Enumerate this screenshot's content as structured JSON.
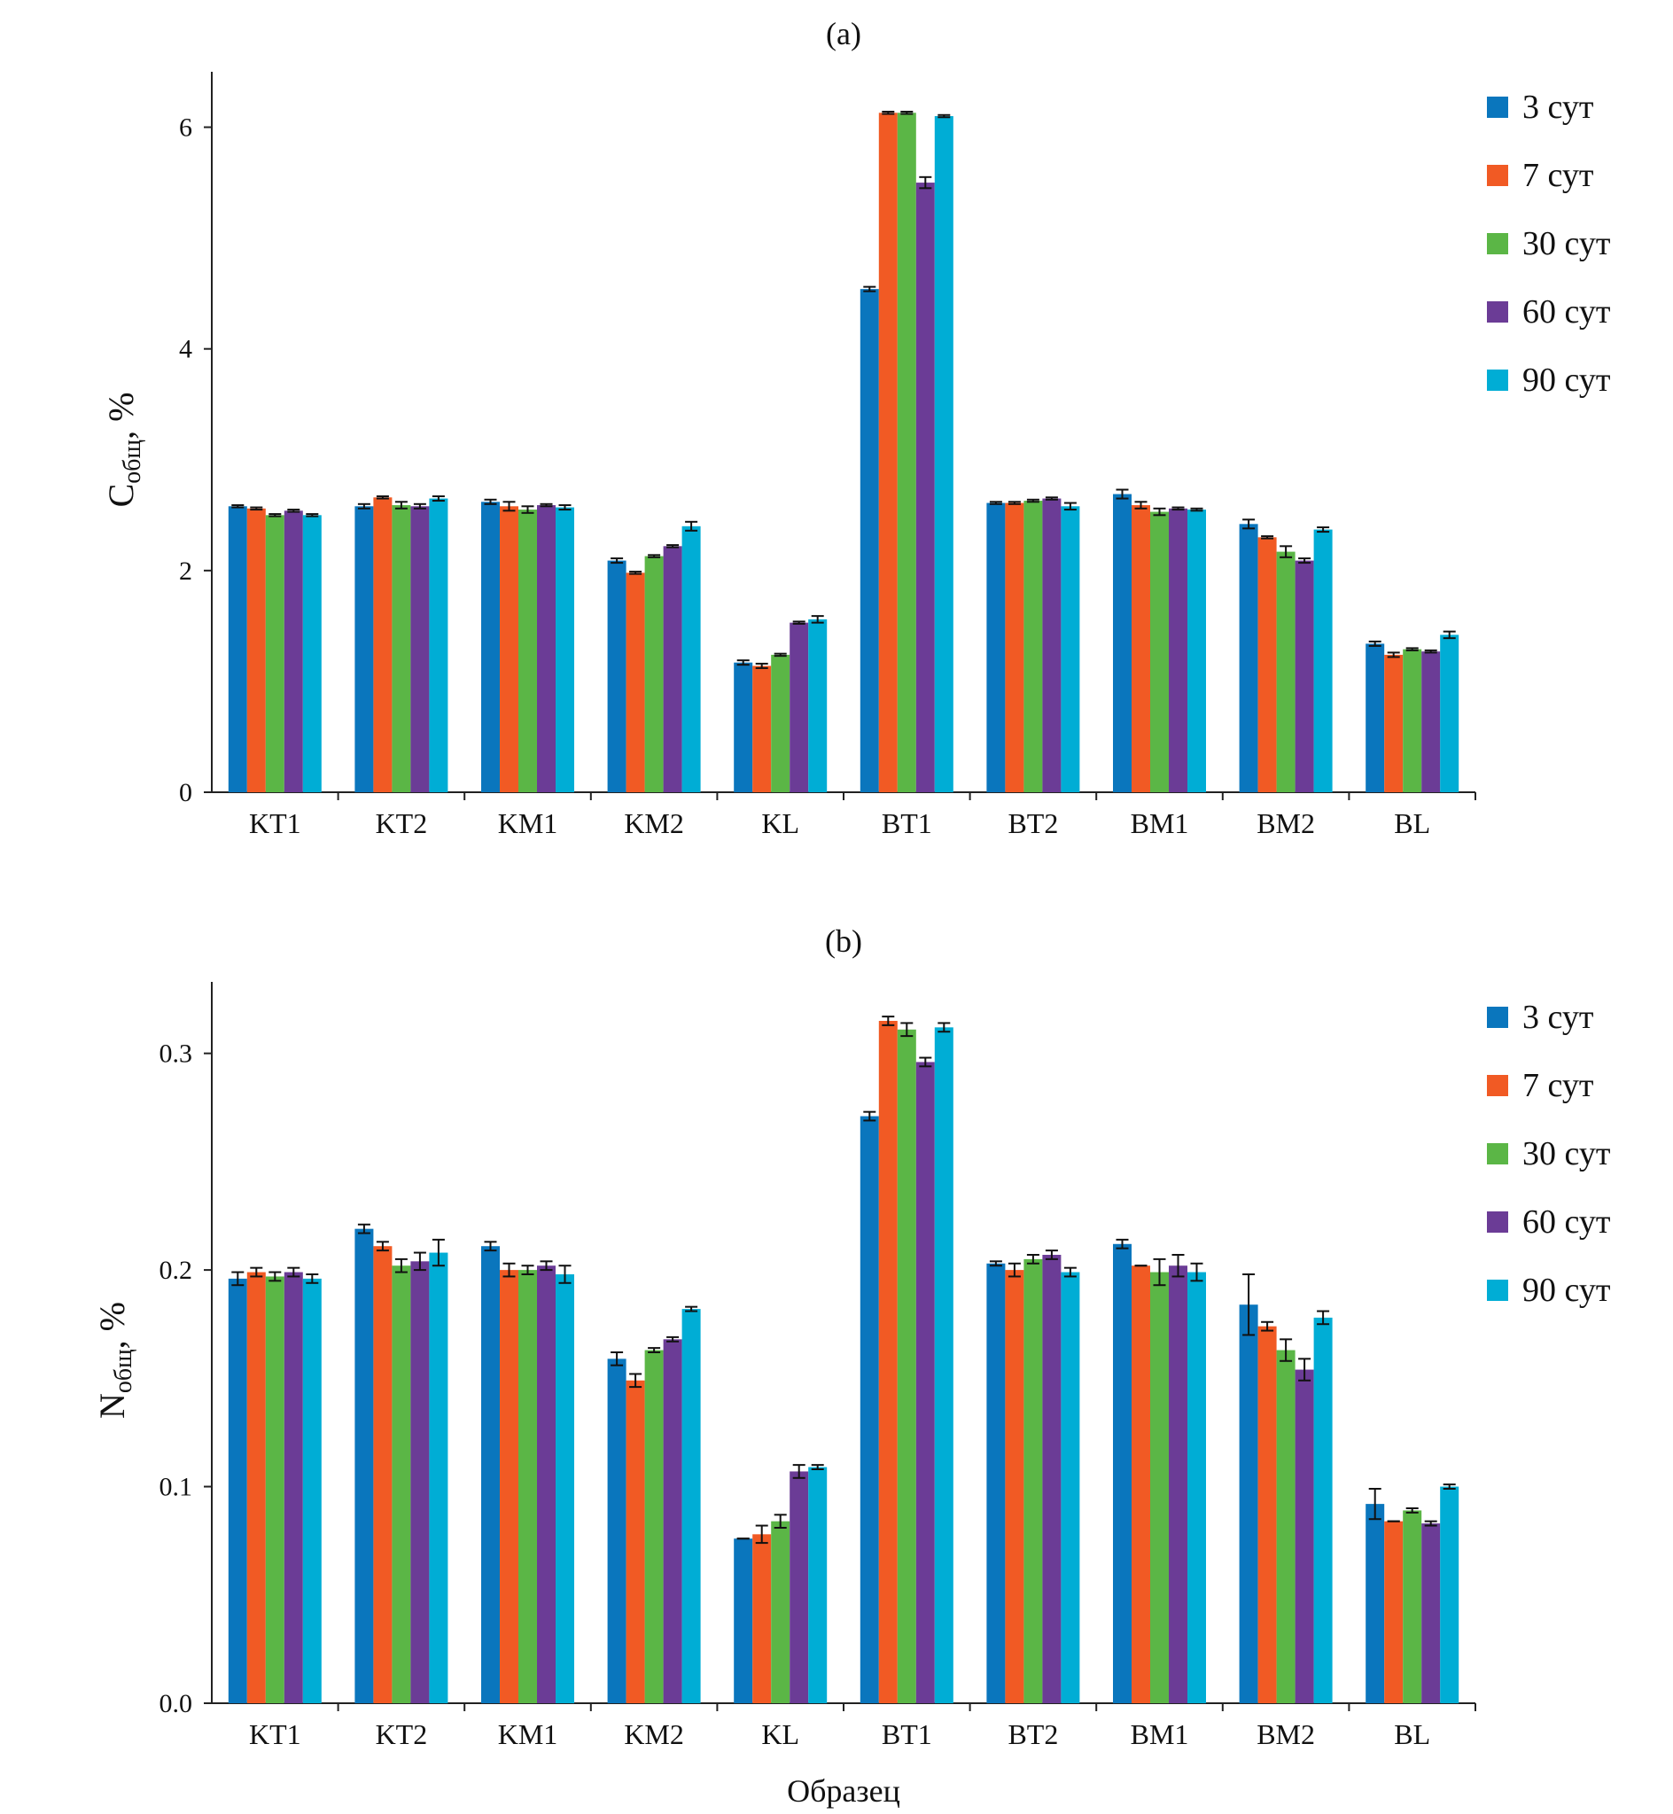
{
  "colors": [
    "#0a76bd",
    "#f15a24",
    "#5bb646",
    "#6b3c96",
    "#00add5"
  ],
  "xlabel": "Образец",
  "chart_data": [
    {
      "type": "bar",
      "title": "(a)",
      "ylabel_main": "C",
      "ylabel_sub": "общ",
      "ylabel_tail": ", %",
      "ylim": [
        0,
        6.5
      ],
      "yticks": [
        0,
        2,
        4,
        6
      ],
      "ytick_labels": [
        "0",
        "2",
        "4",
        "6"
      ],
      "categories": [
        "KT1",
        "KT2",
        "KM1",
        "KM2",
        "KL",
        "BT1",
        "BT2",
        "BM1",
        "BM2",
        "BL"
      ],
      "series": [
        {
          "name": "3 сут",
          "values": [
            2.58,
            2.58,
            2.62,
            2.09,
            1.17,
            4.54,
            2.61,
            2.69,
            2.42,
            1.34
          ],
          "errors": [
            0.01,
            0.02,
            0.02,
            0.02,
            0.02,
            0.02,
            0.01,
            0.04,
            0.04,
            0.02
          ]
        },
        {
          "name": "7 сут",
          "values": [
            2.56,
            2.66,
            2.58,
            1.98,
            1.14,
            6.13,
            2.61,
            2.59,
            2.3,
            1.24
          ],
          "errors": [
            0.01,
            0.01,
            0.04,
            0.01,
            0.02,
            0.01,
            0.01,
            0.03,
            0.01,
            0.02
          ]
        },
        {
          "name": "30 сут",
          "values": [
            2.5,
            2.59,
            2.55,
            2.13,
            1.24,
            6.13,
            2.63,
            2.53,
            2.17,
            1.29
          ],
          "errors": [
            0.01,
            0.03,
            0.03,
            0.01,
            0.01,
            0.01,
            0.01,
            0.03,
            0.05,
            0.01
          ]
        },
        {
          "name": "60 сут",
          "values": [
            2.54,
            2.58,
            2.59,
            2.22,
            1.53,
            5.5,
            2.65,
            2.56,
            2.09,
            1.27
          ],
          "errors": [
            0.01,
            0.02,
            0.01,
            0.01,
            0.01,
            0.05,
            0.01,
            0.01,
            0.02,
            0.01
          ]
        },
        {
          "name": "90 сут",
          "values": [
            2.5,
            2.65,
            2.57,
            2.4,
            1.56,
            6.1,
            2.58,
            2.55,
            2.37,
            1.42
          ],
          "errors": [
            0.01,
            0.02,
            0.02,
            0.04,
            0.03,
            0.01,
            0.03,
            0.01,
            0.02,
            0.03
          ]
        }
      ],
      "legend": "top-right",
      "grid": false
    },
    {
      "type": "bar",
      "title": "(b)",
      "ylabel_main": "N",
      "ylabel_sub": "общ",
      "ylabel_tail": ", %",
      "ylim": [
        0,
        0.333
      ],
      "yticks": [
        0,
        0.1,
        0.2,
        0.3
      ],
      "ytick_labels": [
        "0.0",
        "0.1",
        "0.2",
        "0.3"
      ],
      "categories": [
        "KT1",
        "KT2",
        "KM1",
        "KM2",
        "KL",
        "BT1",
        "BT2",
        "BM1",
        "BM2",
        "BL"
      ],
      "series": [
        {
          "name": "3 сут",
          "values": [
            0.196,
            0.219,
            0.211,
            0.159,
            0.076,
            0.271,
            0.203,
            0.212,
            0.184,
            0.092
          ],
          "errors": [
            0.003,
            0.002,
            0.002,
            0.003,
            0.0,
            0.002,
            0.001,
            0.002,
            0.014,
            0.007
          ]
        },
        {
          "name": "7 сут",
          "values": [
            0.199,
            0.211,
            0.2,
            0.149,
            0.078,
            0.315,
            0.2,
            0.202,
            0.174,
            0.084
          ],
          "errors": [
            0.002,
            0.002,
            0.003,
            0.003,
            0.004,
            0.002,
            0.003,
            0.0,
            0.002,
            0.0
          ]
        },
        {
          "name": "30 сут",
          "values": [
            0.197,
            0.202,
            0.2,
            0.163,
            0.084,
            0.311,
            0.205,
            0.199,
            0.163,
            0.089
          ],
          "errors": [
            0.002,
            0.003,
            0.002,
            0.001,
            0.003,
            0.003,
            0.002,
            0.006,
            0.005,
            0.001
          ]
        },
        {
          "name": "60 сут",
          "values": [
            0.199,
            0.204,
            0.202,
            0.168,
            0.107,
            0.296,
            0.207,
            0.202,
            0.154,
            0.083
          ],
          "errors": [
            0.002,
            0.004,
            0.002,
            0.001,
            0.003,
            0.002,
            0.002,
            0.005,
            0.005,
            0.001
          ]
        },
        {
          "name": "90 сут",
          "values": [
            0.196,
            0.208,
            0.198,
            0.182,
            0.109,
            0.312,
            0.199,
            0.199,
            0.178,
            0.1
          ],
          "errors": [
            0.002,
            0.006,
            0.004,
            0.001,
            0.001,
            0.002,
            0.002,
            0.004,
            0.003,
            0.001
          ]
        }
      ],
      "legend": "top-right",
      "grid": false
    }
  ]
}
